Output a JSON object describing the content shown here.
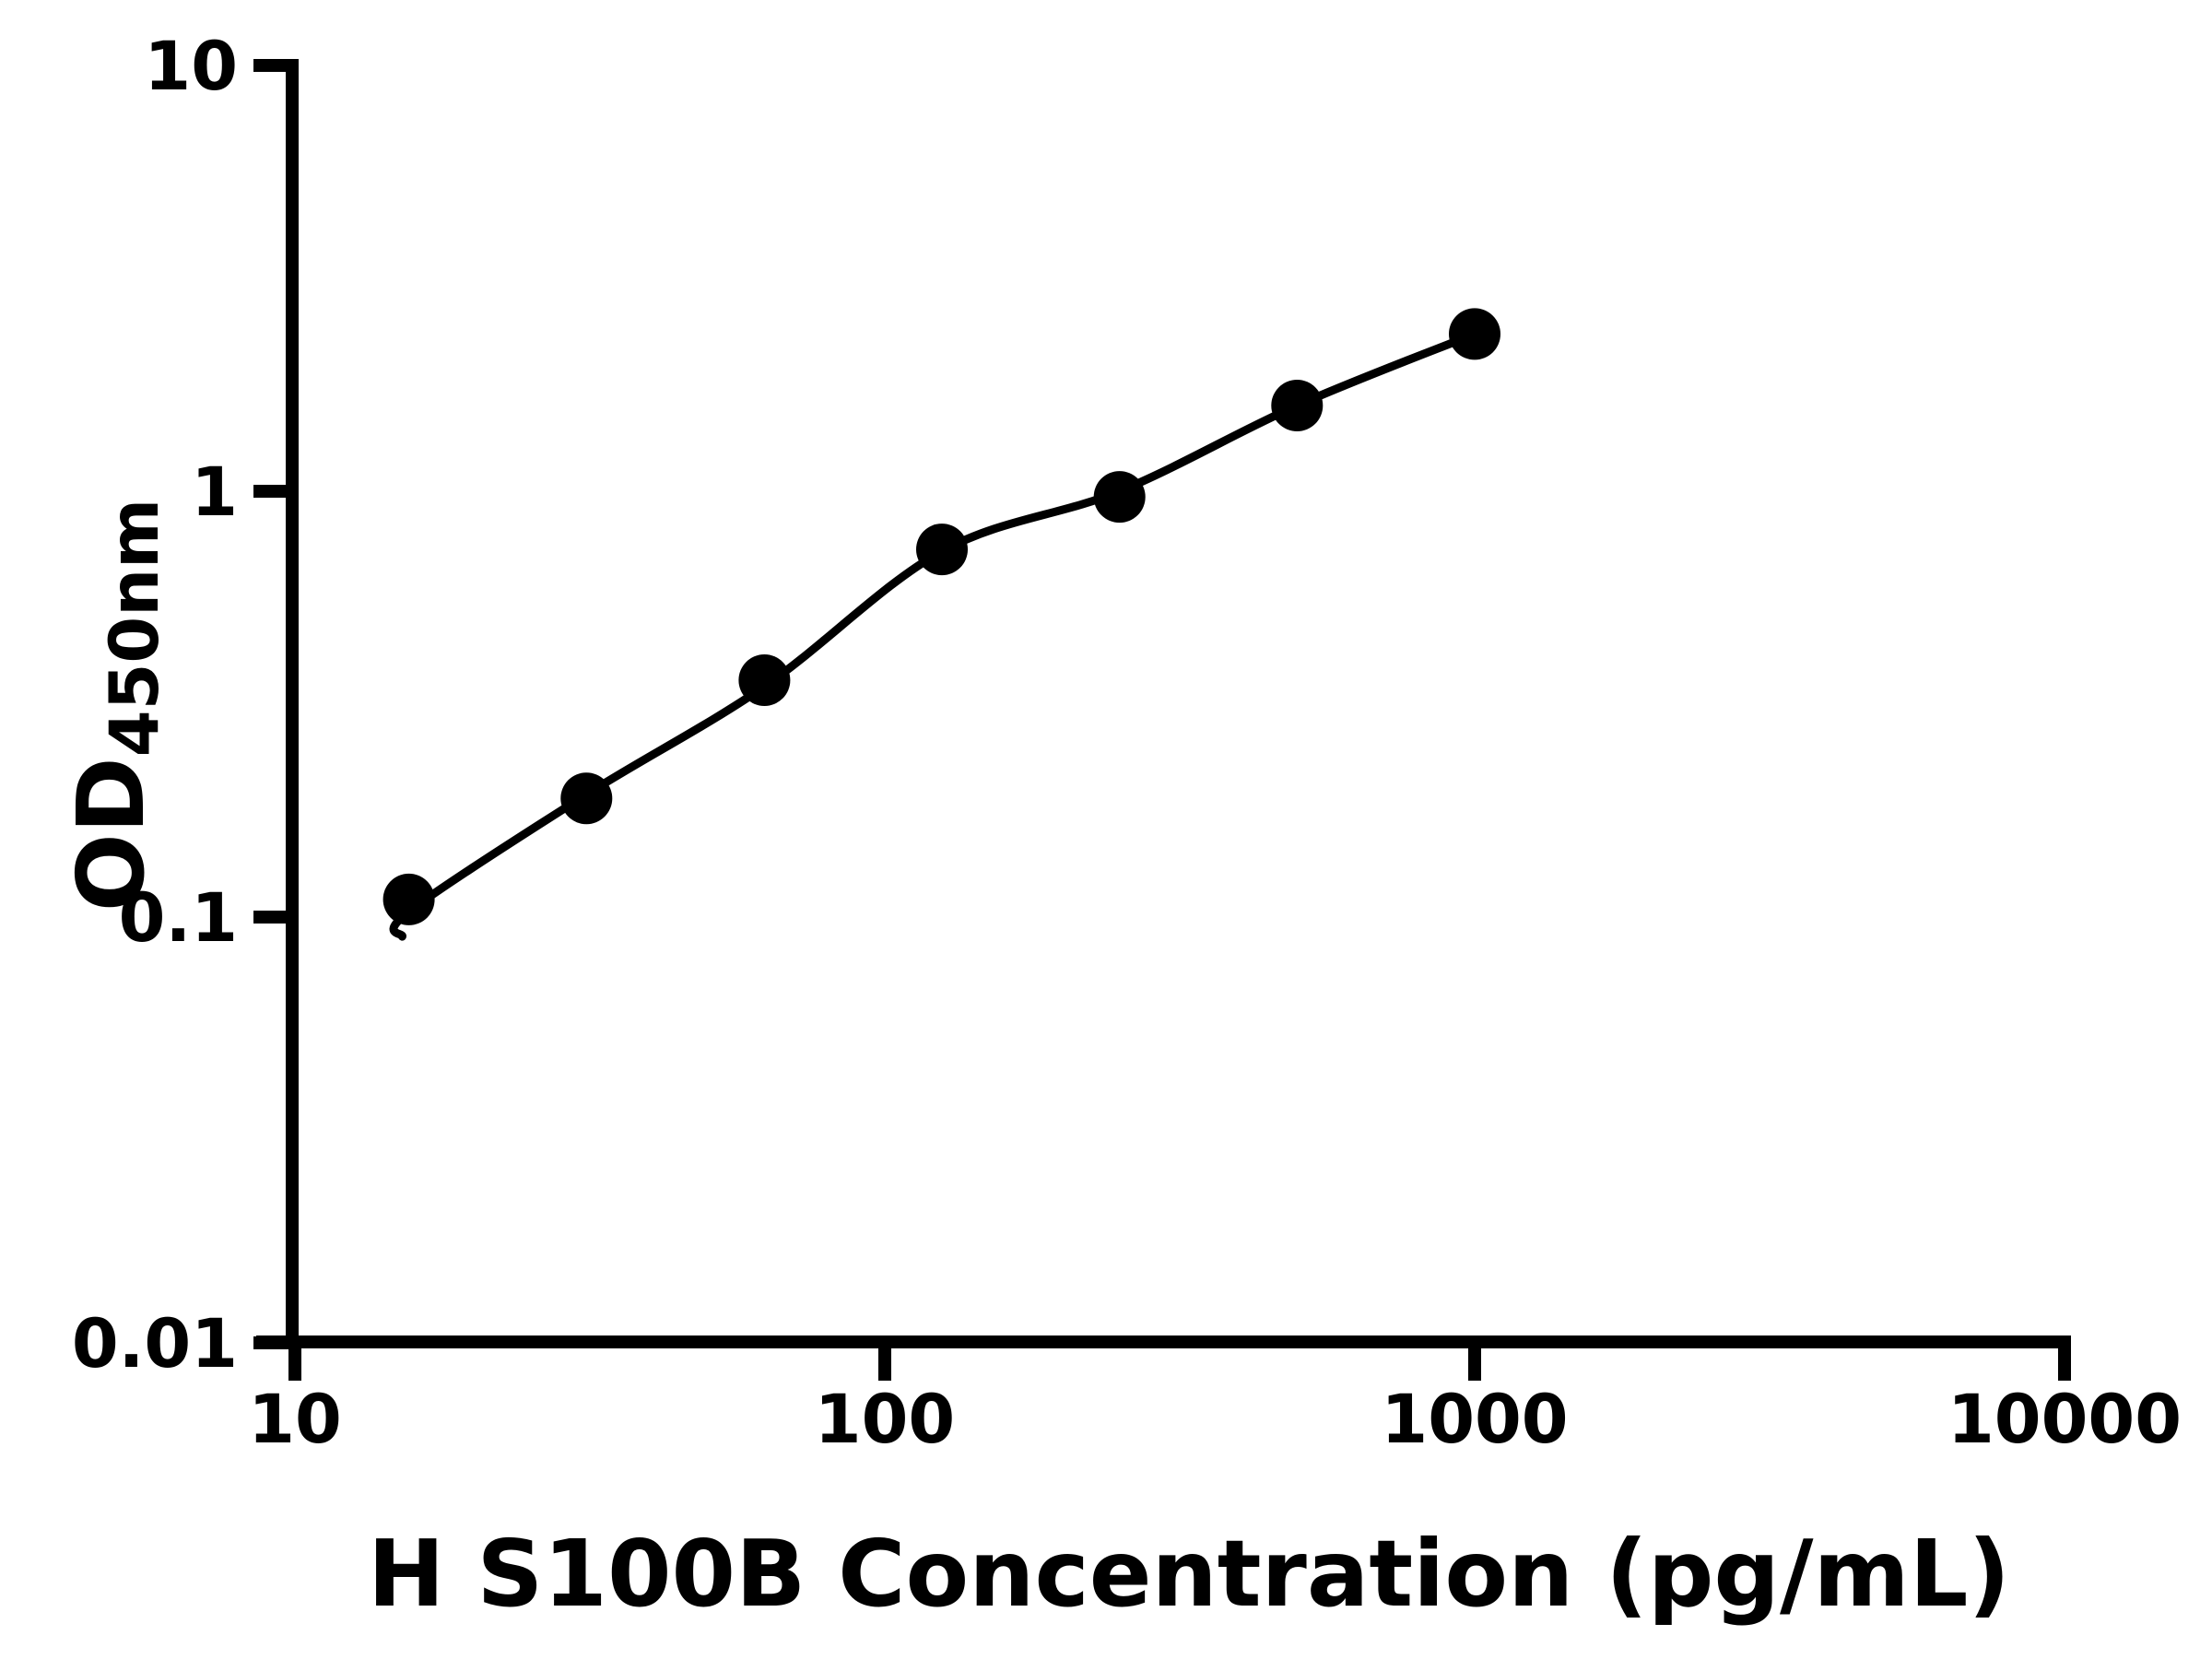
{
  "figure": {
    "background_color": "#ffffff",
    "ink_color": "#000000"
  },
  "chart_data": {
    "type": "scatter",
    "title": "",
    "xlabel": "H S100B Concentration (pg/mL)",
    "ylabel": "OD",
    "ylabel_subscript": "450nm",
    "x_scale": "log10",
    "y_scale": "log10",
    "xlim": [
      10,
      10000
    ],
    "ylim": [
      0.01,
      10
    ],
    "grid": false,
    "legend": "none",
    "x_ticks": [
      {
        "value": 10,
        "label": "10"
      },
      {
        "value": 100,
        "label": "100"
      },
      {
        "value": 1000,
        "label": "1000"
      },
      {
        "value": 10000,
        "label": "10000"
      }
    ],
    "y_ticks": [
      {
        "value": 10,
        "label": "10"
      },
      {
        "value": 1,
        "label": "1"
      },
      {
        "value": 0.1,
        "label": "0.1"
      },
      {
        "value": 0.01,
        "label": "0.01"
      }
    ],
    "series": [
      {
        "name": "standard_points",
        "type": "scatter",
        "marker": "filled-circle",
        "color": "#000000",
        "x": [
          15.6,
          31.2,
          62.5,
          125,
          250,
          500,
          1000
        ],
        "y": [
          0.11,
          0.19,
          0.36,
          0.73,
          0.97,
          1.59,
          2.34
        ]
      },
      {
        "name": "fit_curve",
        "type": "line",
        "color": "#000000",
        "x": [
          15.2,
          15.6,
          31.2,
          62.5,
          125,
          250,
          500,
          1000
        ],
        "y": [
          0.09,
          0.103,
          0.194,
          0.348,
          0.723,
          1.0,
          1.59,
          2.34
        ]
      }
    ]
  }
}
